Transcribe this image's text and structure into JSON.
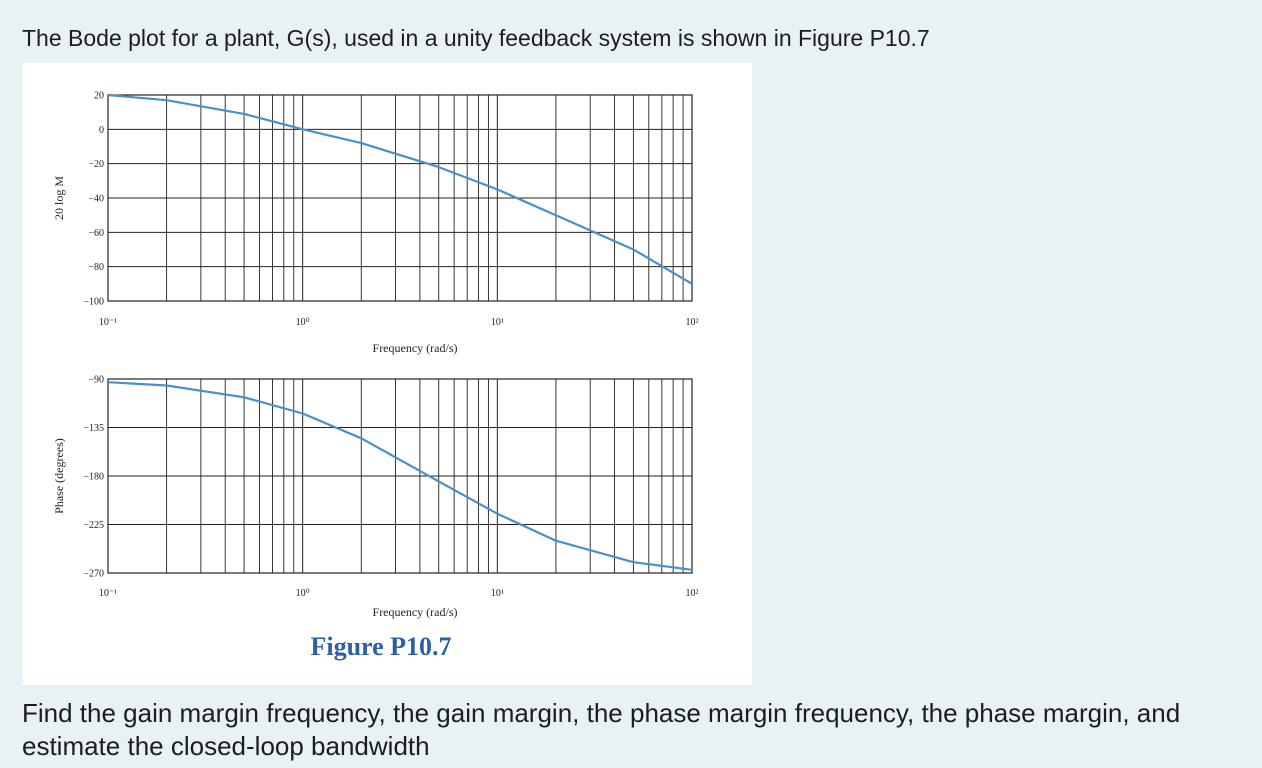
{
  "question_intro": "The Bode plot for a plant, G(s), used in a unity feedback system is shown in Figure P10.7",
  "question_task": "Find the gain margin frequency, the gain margin, the phase margin frequency, the phase margin, and estimate the closed-loop bandwidth",
  "figure_caption": "Figure P10.7",
  "colors": {
    "curve": "#4a90c8",
    "grid": "#222222",
    "caption": "#2d5fa3",
    "background": "#e8f1f4"
  },
  "chart_data": [
    {
      "type": "line",
      "xlabel": "Frequency (rad/s)",
      "ylabel": "20 log M",
      "x_scale": "log",
      "xlim": [
        0.1,
        100
      ],
      "ylim": [
        -100,
        20
      ],
      "grid": true,
      "x_tick_labels": [
        "10⁻¹",
        "10⁰",
        "10¹",
        "10²"
      ],
      "y_tick_labels": [
        "20",
        "0",
        "-20",
        "-40",
        "-60",
        "-80",
        "-100"
      ],
      "series": [
        {
          "x": [
            0.1,
            0.2,
            0.5,
            1,
            2,
            5,
            10,
            20,
            50,
            100
          ],
          "y": [
            20,
            17,
            9,
            0,
            -8,
            -22,
            -35,
            -50,
            -70,
            -90
          ]
        }
      ]
    },
    {
      "type": "line",
      "xlabel": "Frequency (rad/s)",
      "ylabel": "Phase (degrees)",
      "x_scale": "log",
      "xlim": [
        0.1,
        100
      ],
      "ylim": [
        -270,
        -90
      ],
      "grid": true,
      "x_tick_labels": [
        "10⁻¹",
        "10⁰",
        "10¹",
        "10²"
      ],
      "y_tick_labels": [
        "-90",
        "-135",
        "-180",
        "-225",
        "-270"
      ],
      "series": [
        {
          "x": [
            0.1,
            0.2,
            0.5,
            1,
            2,
            5,
            10,
            20,
            50,
            100
          ],
          "y": [
            -93,
            -96,
            -107,
            -122,
            -145,
            -185,
            -215,
            -240,
            -260,
            -267
          ]
        }
      ]
    }
  ]
}
